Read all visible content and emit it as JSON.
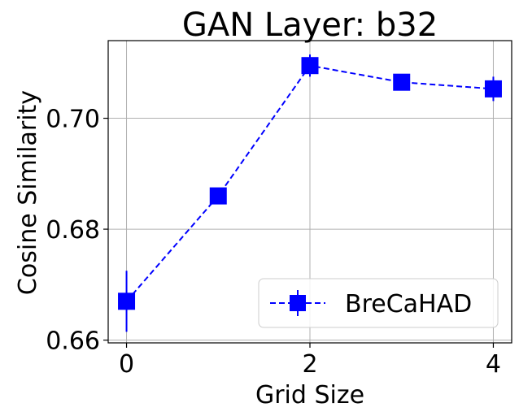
{
  "chart_data": {
    "type": "line",
    "title": "GAN Layer: b32",
    "xlabel": "Grid Size",
    "ylabel": "Cosine Similarity",
    "xlim": [
      -0.2,
      4.2
    ],
    "ylim": [
      0.6595,
      0.714
    ],
    "x_ticks": [
      0,
      2,
      4
    ],
    "x_tick_labels": [
      "0",
      "2",
      "4"
    ],
    "y_ticks": [
      0.66,
      0.68,
      0.7
    ],
    "y_tick_labels": [
      "0.66",
      "0.68",
      "0.70"
    ],
    "grid": true,
    "legend": "lower right",
    "series": [
      {
        "name": "BreCaHAD",
        "color": "#0000ff",
        "marker": "square",
        "linestyle": "dashed",
        "x": [
          0,
          1,
          2,
          3,
          4
        ],
        "y": [
          0.667,
          0.686,
          0.7095,
          0.7065,
          0.7053
        ],
        "yerr": [
          0.0055,
          0.0003,
          0.002,
          0.0003,
          0.0022
        ]
      }
    ]
  }
}
